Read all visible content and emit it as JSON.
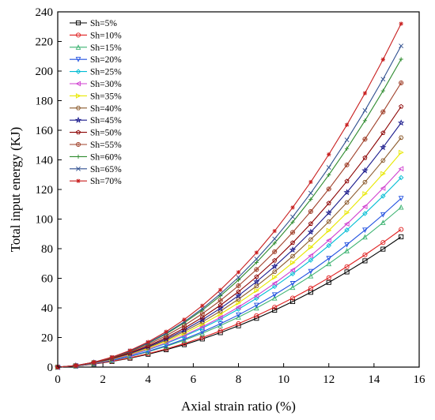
{
  "chart_data": {
    "type": "line",
    "title": "",
    "xlabel": "Axial strain ratio (%)",
    "ylabel": "Total input energy (KJ)",
    "xlim": [
      0,
      16
    ],
    "ylim": [
      0,
      240
    ],
    "xticks": [
      0,
      2,
      4,
      6,
      8,
      10,
      12,
      14,
      16
    ],
    "yticks": [
      0,
      20,
      40,
      60,
      80,
      100,
      120,
      140,
      160,
      180,
      200,
      220,
      240
    ],
    "grid": false,
    "legend_position": "top-left",
    "series": [
      {
        "name": "Sh=5%",
        "color": "#000000",
        "marker": "square",
        "final": 88,
        "k": 0.55
      },
      {
        "name": "Sh=10%",
        "color": "#e02020",
        "marker": "circle",
        "final": 93,
        "k": 0.56
      },
      {
        "name": "Sh=15%",
        "color": "#3cb371",
        "marker": "triangle-up",
        "final": 108,
        "k": 0.58
      },
      {
        "name": "Sh=20%",
        "color": "#2050e0",
        "marker": "triangle-down",
        "final": 114,
        "k": 0.6
      },
      {
        "name": "Sh=25%",
        "color": "#00bcd4",
        "marker": "diamond",
        "final": 128,
        "k": 0.62
      },
      {
        "name": "Sh=30%",
        "color": "#d040d0",
        "marker": "triangle-left",
        "final": 134,
        "k": 0.64
      },
      {
        "name": "Sh=35%",
        "color": "#e8e800",
        "marker": "triangle-right",
        "final": 145,
        "k": 0.66
      },
      {
        "name": "Sh=40%",
        "color": "#8b5a2b",
        "marker": "hexagon",
        "final": 155,
        "k": 0.68
      },
      {
        "name": "Sh=45%",
        "color": "#1a1a8c",
        "marker": "star",
        "final": 165,
        "k": 0.7
      },
      {
        "name": "Sh=50%",
        "color": "#8b0000",
        "marker": "pentagon",
        "final": 176,
        "k": 0.72
      },
      {
        "name": "Sh=55%",
        "color": "#a0402a",
        "marker": "circle-plus",
        "final": 192,
        "k": 0.74
      },
      {
        "name": "Sh=60%",
        "color": "#2e8b2e",
        "marker": "plus",
        "final": 208,
        "k": 0.76
      },
      {
        "name": "Sh=65%",
        "color": "#2f4f8f",
        "marker": "cross",
        "final": 217,
        "k": 0.78
      },
      {
        "name": "Sh=70%",
        "color": "#c81e1e",
        "marker": "asterisk",
        "final": 232,
        "k": 0.8
      }
    ],
    "x": [
      0,
      0.8,
      1.6,
      2.4,
      3.2,
      4.0,
      4.8,
      5.6,
      6.4,
      7.2,
      8.0,
      8.8,
      9.6,
      10.4,
      11.2,
      12.0,
      12.8,
      13.6,
      14.4,
      15.2
    ]
  }
}
